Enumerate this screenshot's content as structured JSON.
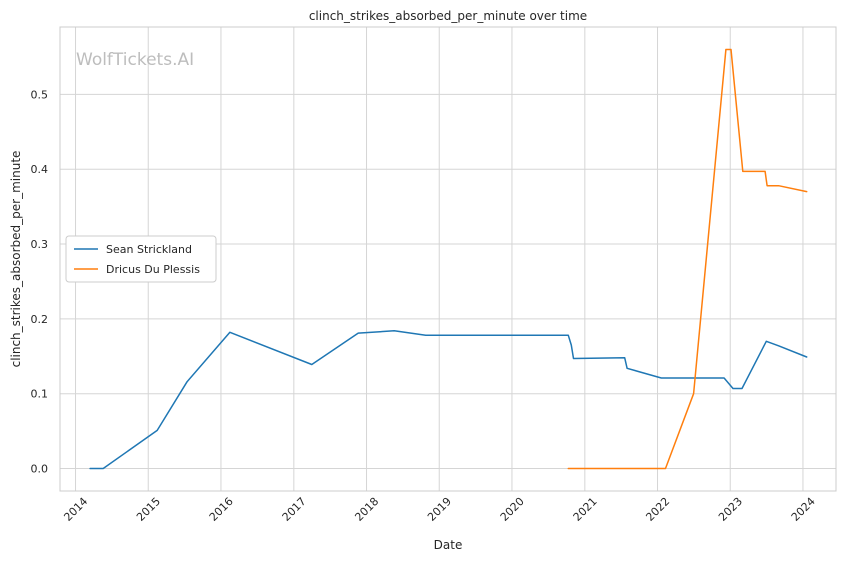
{
  "chart_data": {
    "type": "line",
    "title": "clinch_strikes_absorbed_per_minute over time",
    "xlabel": "Date",
    "ylabel": "clinch_strikes_absorbed_per_minute",
    "watermark": "WolfTickets.AI",
    "xlim": [
      "2013-10-15",
      "2024-06-15"
    ],
    "ylim": [
      -0.03,
      0.59
    ],
    "x_ticks": [
      "2014",
      "2015",
      "2016",
      "2017",
      "2018",
      "2019",
      "2020",
      "2021",
      "2022",
      "2023",
      "2024"
    ],
    "x_tick_dates": [
      "2014-01-01",
      "2015-01-01",
      "2016-01-01",
      "2017-01-01",
      "2018-01-01",
      "2019-01-01",
      "2020-01-01",
      "2021-01-01",
      "2022-01-01",
      "2023-01-01",
      "2024-01-01"
    ],
    "y_ticks": [
      0.0,
      0.1,
      0.2,
      0.3,
      0.4,
      0.5
    ],
    "y_tick_labels": [
      "0.0",
      "0.1",
      "0.2",
      "0.3",
      "0.4",
      "0.5"
    ],
    "grid": true,
    "legend_position": "center-left",
    "series": [
      {
        "name": "Sean Strickland",
        "color": "#1f77b4",
        "points": [
          [
            "2014-03-15",
            0.0
          ],
          [
            "2014-05-20",
            0.0
          ],
          [
            "2015-02-15",
            0.051
          ],
          [
            "2015-07-15",
            0.116
          ],
          [
            "2016-02-15",
            0.182
          ],
          [
            "2017-04-01",
            0.139
          ],
          [
            "2017-11-20",
            0.181
          ],
          [
            "2018-05-20",
            0.184
          ],
          [
            "2018-10-25",
            0.178
          ],
          [
            "2020-10-10",
            0.178
          ],
          [
            "2020-10-25",
            0.165
          ],
          [
            "2020-11-05",
            0.147
          ],
          [
            "2021-07-20",
            0.148
          ],
          [
            "2021-08-01",
            0.134
          ],
          [
            "2022-01-20",
            0.121
          ],
          [
            "2022-12-01",
            0.121
          ],
          [
            "2023-01-15",
            0.107
          ],
          [
            "2023-03-01",
            0.107
          ],
          [
            "2023-07-01",
            0.17
          ],
          [
            "2023-09-01",
            0.164
          ],
          [
            "2024-01-20",
            0.149
          ]
        ]
      },
      {
        "name": "Dricus Du Plessis",
        "color": "#ff7f0e",
        "points": [
          [
            "2020-10-10",
            0.0
          ],
          [
            "2022-02-10",
            0.0
          ],
          [
            "2022-07-01",
            0.1
          ],
          [
            "2022-12-10",
            0.56
          ],
          [
            "2023-01-05",
            0.56
          ],
          [
            "2023-03-05",
            0.397
          ],
          [
            "2023-06-25",
            0.397
          ],
          [
            "2023-07-05",
            0.378
          ],
          [
            "2023-09-01",
            0.378
          ],
          [
            "2024-01-20",
            0.37
          ]
        ]
      }
    ]
  }
}
